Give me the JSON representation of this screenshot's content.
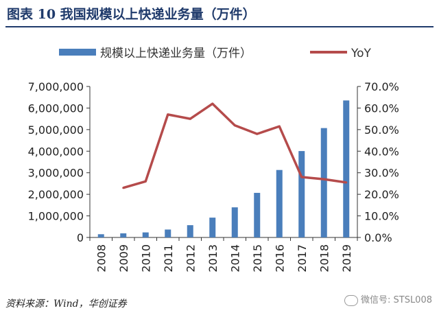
{
  "header": {
    "title": "图表 10    我国规模以上快递业务量（万件）"
  },
  "source": "资料来源：Wind，华创证券",
  "watermark": "微信号: STSL008",
  "colors": {
    "bar": "#4a7ebb",
    "line": "#b54b4b",
    "axis": "#333333",
    "title": "#1f3a6b"
  },
  "chart_data": {
    "type": "bar",
    "categories": [
      "2008",
      "2009",
      "2010",
      "2011",
      "2012",
      "2013",
      "2014",
      "2015",
      "2016",
      "2017",
      "2018",
      "2019"
    ],
    "series": [
      {
        "name": "规模以上快递业务量（万件）",
        "type": "bar",
        "axis": "left",
        "values": [
          150000,
          190000,
          234000,
          367000,
          569000,
          919000,
          1396000,
          2067000,
          3128000,
          4006000,
          5071000,
          6352000
        ]
      },
      {
        "name": "YoY",
        "type": "line",
        "axis": "right",
        "values": [
          null,
          0.23,
          0.26,
          0.57,
          0.55,
          0.62,
          0.52,
          0.48,
          0.515,
          0.28,
          0.27,
          0.255
        ]
      }
    ],
    "y_left": {
      "min": 0,
      "max": 7000000,
      "step": 1000000,
      "tick_labels": [
        "0",
        "1,000,000",
        "2,000,000",
        "3,000,000",
        "4,000,000",
        "5,000,000",
        "6,000,000",
        "7,000,000"
      ]
    },
    "y_right": {
      "min": 0,
      "max": 0.7,
      "step": 0.1,
      "tick_labels": [
        "0.0%",
        "10.0%",
        "20.0%",
        "30.0%",
        "40.0%",
        "50.0%",
        "60.0%",
        "70.0%"
      ]
    },
    "legend_position": "top",
    "grid": false
  }
}
